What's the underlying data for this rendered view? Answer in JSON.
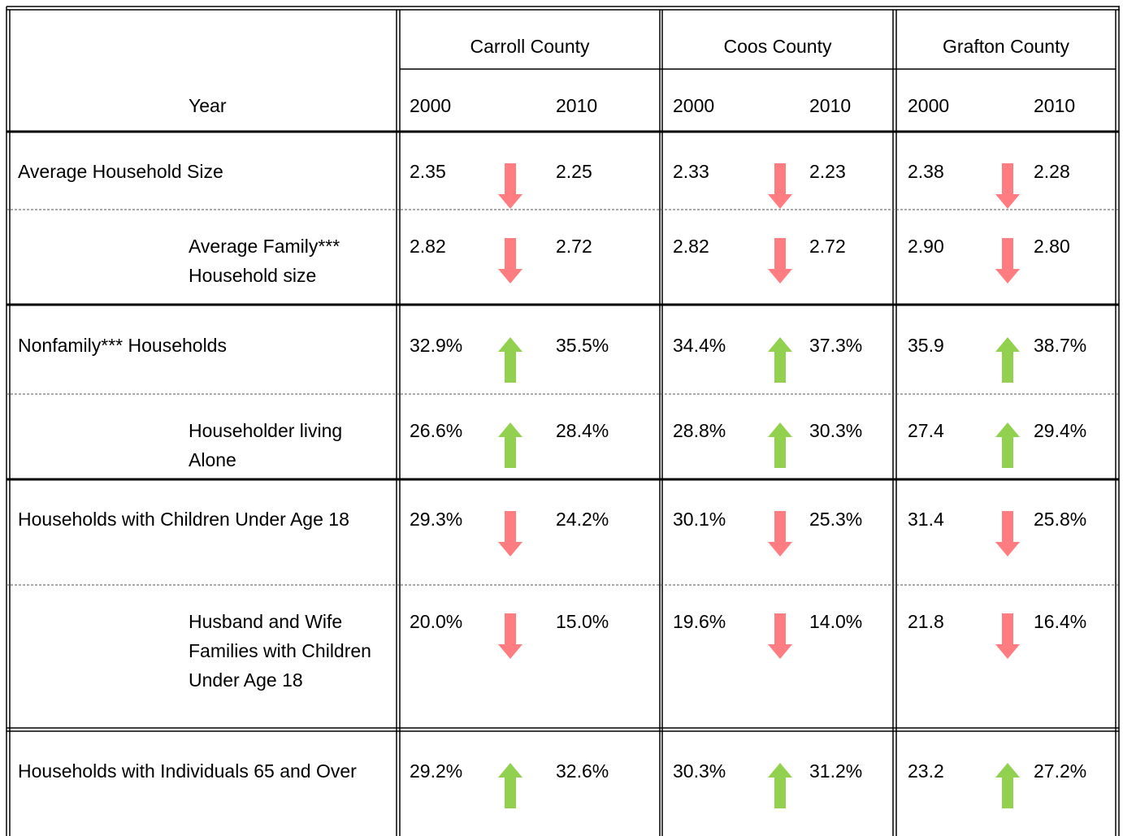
{
  "table": {
    "header": {
      "corner": "Year",
      "counties": [
        "Carroll County",
        "Coos County",
        "Grafton County"
      ],
      "years": [
        [
          "2000",
          "2010"
        ],
        [
          "2000",
          "2010"
        ],
        [
          "2000",
          "2010"
        ]
      ]
    },
    "groups": [
      {
        "rows": [
          {
            "label": "Average Household Size",
            "cells": [
              [
                "2.35",
                "2.25"
              ],
              [
                "2.33",
                "2.23"
              ],
              [
                "2.38",
                "2.28"
              ]
            ]
          },
          {
            "label": "Average Family*** Household size",
            "cells": [
              [
                "2.82",
                "2.72"
              ],
              [
                "2.82",
                "2.72"
              ],
              [
                "2.90",
                "2.80"
              ]
            ]
          }
        ]
      },
      {
        "rows": [
          {
            "label": "Nonfamily*** Households",
            "cells": [
              [
                "32.9%",
                "35.5%"
              ],
              [
                "34.4%",
                "37.3%"
              ],
              [
                "35.9",
                "38.7%"
              ]
            ]
          },
          {
            "label": "Householder living Alone",
            "cells": [
              [
                "26.6%",
                "28.4%"
              ],
              [
                "28.8%",
                "30.3%"
              ],
              [
                "27.4",
                "29.4%"
              ]
            ]
          }
        ]
      },
      {
        "rows": [
          {
            "label": "Households with Children Under Age 18",
            "cells": [
              [
                "29.3%",
                "24.2%"
              ],
              [
                "30.1%",
                "25.3%"
              ],
              [
                "31.4",
                "25.8%"
              ]
            ]
          },
          {
            "label": "Husband and Wife Families with Children Under Age 18",
            "cells": [
              [
                "20.0%",
                "15.0%"
              ],
              [
                "19.6%",
                "14.0%"
              ],
              [
                "21.8",
                "16.4%"
              ]
            ]
          }
        ]
      },
      {
        "rows": [
          {
            "label": "Households with Individuals 65 and Over",
            "cells": [
              [
                "29.2%",
                "32.6%"
              ],
              [
                "30.3%",
                "31.2%"
              ],
              [
                "23.2",
                "27.2%"
              ]
            ]
          }
        ]
      }
    ]
  }
}
